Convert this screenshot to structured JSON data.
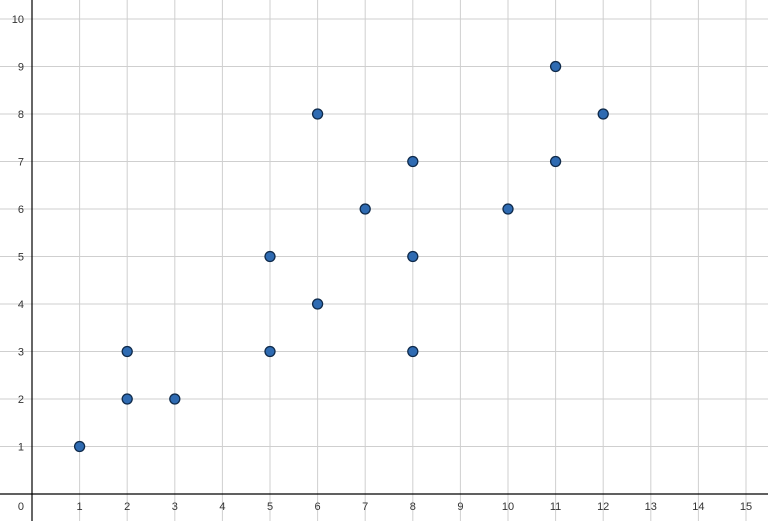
{
  "chart_data": {
    "type": "scatter",
    "title": "",
    "xlabel": "",
    "ylabel": "",
    "xlim": [
      0,
      15.5
    ],
    "ylim": [
      0,
      10.3
    ],
    "grid": true,
    "x_ticks": [
      "1",
      "2",
      "3",
      "4",
      "5",
      "6",
      "7",
      "8",
      "9",
      "10",
      "11",
      "12",
      "13",
      "14",
      "15"
    ],
    "y_ticks": [
      "1",
      "2",
      "3",
      "4",
      "5",
      "6",
      "7",
      "8",
      "9",
      "10"
    ],
    "origin_label": "0",
    "point_color": "#2f6bb2",
    "point_edge_color": "#0f2a4a",
    "points": [
      {
        "x": 1,
        "y": 1
      },
      {
        "x": 2,
        "y": 2
      },
      {
        "x": 2,
        "y": 3
      },
      {
        "x": 3,
        "y": 2
      },
      {
        "x": 5,
        "y": 3
      },
      {
        "x": 5,
        "y": 5
      },
      {
        "x": 6,
        "y": 4
      },
      {
        "x": 6,
        "y": 8
      },
      {
        "x": 7,
        "y": 6
      },
      {
        "x": 8,
        "y": 3
      },
      {
        "x": 8,
        "y": 5
      },
      {
        "x": 8,
        "y": 7
      },
      {
        "x": 10,
        "y": 6
      },
      {
        "x": 11,
        "y": 7
      },
      {
        "x": 11,
        "y": 9
      },
      {
        "x": 12,
        "y": 8
      }
    ]
  }
}
